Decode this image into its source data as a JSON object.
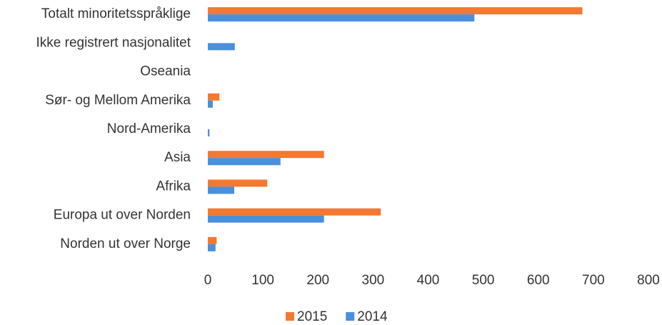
{
  "chart_data": {
    "type": "hbar",
    "categories": [
      "Totalt minoritetsspråklige",
      "Ikke registrert nasjonalitet",
      "Oseania",
      "Sør- og Mellom Amerika",
      "Nord-Amerika",
      "Asia",
      "Afrika",
      "Europa ut over Norden",
      "Norden ut over Norge"
    ],
    "series": [
      {
        "name": "2015",
        "color": "#f4782f",
        "values": [
          680,
          0,
          0,
          21,
          0,
          211,
          108,
          314,
          16
        ]
      },
      {
        "name": "2014",
        "color": "#4a8fdc",
        "values": [
          484,
          49,
          0,
          9,
          3,
          132,
          48,
          211,
          14
        ]
      }
    ],
    "xlim": [
      0,
      800
    ],
    "xticks": [
      0,
      100,
      200,
      300,
      400,
      500,
      600,
      700,
      800
    ],
    "legend": "bottom",
    "grid": false
  }
}
